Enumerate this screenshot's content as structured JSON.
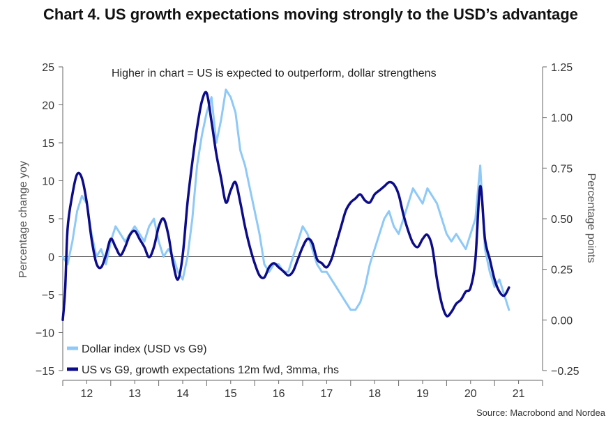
{
  "title": "Chart 4. US growth expectations moving strongly to the USD’s advantage",
  "source": "Source: Macrobond and Nordea",
  "chart_data": {
    "type": "line",
    "annotation": "Higher in chart = US is expected to outperform, dollar strengthens",
    "ylabel": "Percentage change yoy",
    "ylabel_right": "Percentage points",
    "ylim": [
      -15,
      25
    ],
    "ylim_right": [
      -0.25,
      1.25
    ],
    "yticks": [
      25,
      20,
      15,
      10,
      5,
      0,
      -5,
      -10,
      -15
    ],
    "yticks_right": [
      "1.25",
      "1.00",
      "0.75",
      "0.50",
      "0.25",
      "0.00",
      "−0.25"
    ],
    "xlim": [
      2011.5,
      2021.5
    ],
    "xticks": [
      {
        "label": "12",
        "pos": 2012
      },
      {
        "label": "13",
        "pos": 2013
      },
      {
        "label": "14",
        "pos": 2014
      },
      {
        "label": "15",
        "pos": 2015
      },
      {
        "label": "16",
        "pos": 2016
      },
      {
        "label": "17",
        "pos": 2017
      },
      {
        "label": "18",
        "pos": 2018
      },
      {
        "label": "19",
        "pos": 2019
      },
      {
        "label": "20",
        "pos": 2020
      },
      {
        "label": "21",
        "pos": 2021
      }
    ],
    "legend_position": "bottom-left",
    "series": [
      {
        "name": "Dollar index (USD vs G9)",
        "axis": "left",
        "color": "#8ec9f7",
        "x": [
          2011.5,
          2011.6,
          2011.7,
          2011.8,
          2011.9,
          2012.0,
          2012.1,
          2012.2,
          2012.3,
          2012.4,
          2012.5,
          2012.6,
          2012.7,
          2012.8,
          2012.9,
          2013.0,
          2013.1,
          2013.2,
          2013.3,
          2013.4,
          2013.5,
          2013.6,
          2013.7,
          2013.8,
          2013.9,
          2014.0,
          2014.1,
          2014.2,
          2014.3,
          2014.4,
          2014.5,
          2014.6,
          2014.7,
          2014.8,
          2014.9,
          2015.0,
          2015.1,
          2015.2,
          2015.3,
          2015.4,
          2015.5,
          2015.6,
          2015.7,
          2015.8,
          2015.9,
          2016.0,
          2016.1,
          2016.2,
          2016.3,
          2016.4,
          2016.5,
          2016.6,
          2016.7,
          2016.8,
          2016.9,
          2017.0,
          2017.1,
          2017.2,
          2017.3,
          2017.4,
          2017.5,
          2017.6,
          2017.7,
          2017.8,
          2017.9,
          2018.0,
          2018.1,
          2018.2,
          2018.3,
          2018.4,
          2018.5,
          2018.6,
          2018.7,
          2018.8,
          2018.9,
          2019.0,
          2019.1,
          2019.2,
          2019.3,
          2019.4,
          2019.5,
          2019.6,
          2019.7,
          2019.8,
          2019.9,
          2020.0,
          2020.1,
          2020.2,
          2020.3,
          2020.4,
          2020.5,
          2020.6,
          2020.7,
          2020.8
        ],
        "values": [
          0,
          -1,
          2,
          6,
          8,
          7,
          3,
          0,
          1,
          -1,
          2,
          4,
          3,
          2,
          3,
          4,
          3,
          2,
          4,
          5,
          2,
          0,
          1,
          0,
          -2,
          -3,
          0,
          5,
          12,
          16,
          19,
          21,
          15,
          18,
          22,
          21,
          19,
          14,
          12,
          9,
          6,
          3,
          -1,
          -2,
          -1,
          -1,
          -2,
          -2,
          0,
          2,
          4,
          3,
          1,
          -1,
          -2,
          -2,
          -3,
          -4,
          -5,
          -6,
          -7,
          -7,
          -6,
          -4,
          -1,
          1,
          3,
          5,
          6,
          4,
          3,
          5,
          7,
          9,
          8,
          7,
          9,
          8,
          7,
          5,
          3,
          2,
          3,
          2,
          1,
          3,
          5,
          12,
          1,
          -2,
          -4,
          -3,
          -5,
          -7
        ]
      },
      {
        "name": "US vs G9, growth expectations 12m fwd, 3mma, rhs",
        "axis": "right",
        "color": "#0c0c8a",
        "x": [
          2011.5,
          2011.55,
          2011.6,
          2011.7,
          2011.8,
          2011.9,
          2012.0,
          2012.1,
          2012.2,
          2012.3,
          2012.4,
          2012.5,
          2012.6,
          2012.7,
          2012.8,
          2012.9,
          2013.0,
          2013.1,
          2013.2,
          2013.3,
          2013.4,
          2013.5,
          2013.6,
          2013.7,
          2013.8,
          2013.9,
          2014.0,
          2014.1,
          2014.2,
          2014.3,
          2014.4,
          2014.5,
          2014.6,
          2014.7,
          2014.8,
          2014.9,
          2015.0,
          2015.1,
          2015.2,
          2015.3,
          2015.4,
          2015.5,
          2015.6,
          2015.7,
          2015.8,
          2015.9,
          2016.0,
          2016.1,
          2016.2,
          2016.3,
          2016.4,
          2016.5,
          2016.6,
          2016.7,
          2016.8,
          2016.9,
          2017.0,
          2017.1,
          2017.2,
          2017.3,
          2017.4,
          2017.5,
          2017.6,
          2017.7,
          2017.8,
          2017.9,
          2018.0,
          2018.1,
          2018.2,
          2018.3,
          2018.4,
          2018.5,
          2018.6,
          2018.7,
          2018.8,
          2018.9,
          2019.0,
          2019.1,
          2019.2,
          2019.3,
          2019.4,
          2019.5,
          2019.6,
          2019.7,
          2019.8,
          2019.9,
          2020.0,
          2020.1,
          2020.2,
          2020.3,
          2020.4,
          2020.5,
          2020.6,
          2020.7,
          2020.8
        ],
        "values": [
          0.0,
          0.15,
          0.45,
          0.62,
          0.72,
          0.7,
          0.58,
          0.4,
          0.28,
          0.26,
          0.32,
          0.4,
          0.36,
          0.32,
          0.36,
          0.42,
          0.44,
          0.4,
          0.36,
          0.31,
          0.36,
          0.46,
          0.5,
          0.42,
          0.28,
          0.2,
          0.32,
          0.58,
          0.78,
          0.95,
          1.08,
          1.12,
          0.98,
          0.82,
          0.7,
          0.58,
          0.64,
          0.68,
          0.58,
          0.46,
          0.36,
          0.28,
          0.22,
          0.21,
          0.26,
          0.28,
          0.26,
          0.24,
          0.22,
          0.24,
          0.3,
          0.36,
          0.4,
          0.38,
          0.3,
          0.28,
          0.26,
          0.3,
          0.38,
          0.46,
          0.54,
          0.58,
          0.6,
          0.62,
          0.59,
          0.58,
          0.62,
          0.64,
          0.66,
          0.68,
          0.67,
          0.62,
          0.52,
          0.44,
          0.38,
          0.36,
          0.4,
          0.42,
          0.36,
          0.2,
          0.08,
          0.02,
          0.04,
          0.08,
          0.1,
          0.14,
          0.16,
          0.3,
          0.66,
          0.4,
          0.3,
          0.2,
          0.14,
          0.12,
          0.16
        ]
      }
    ]
  }
}
